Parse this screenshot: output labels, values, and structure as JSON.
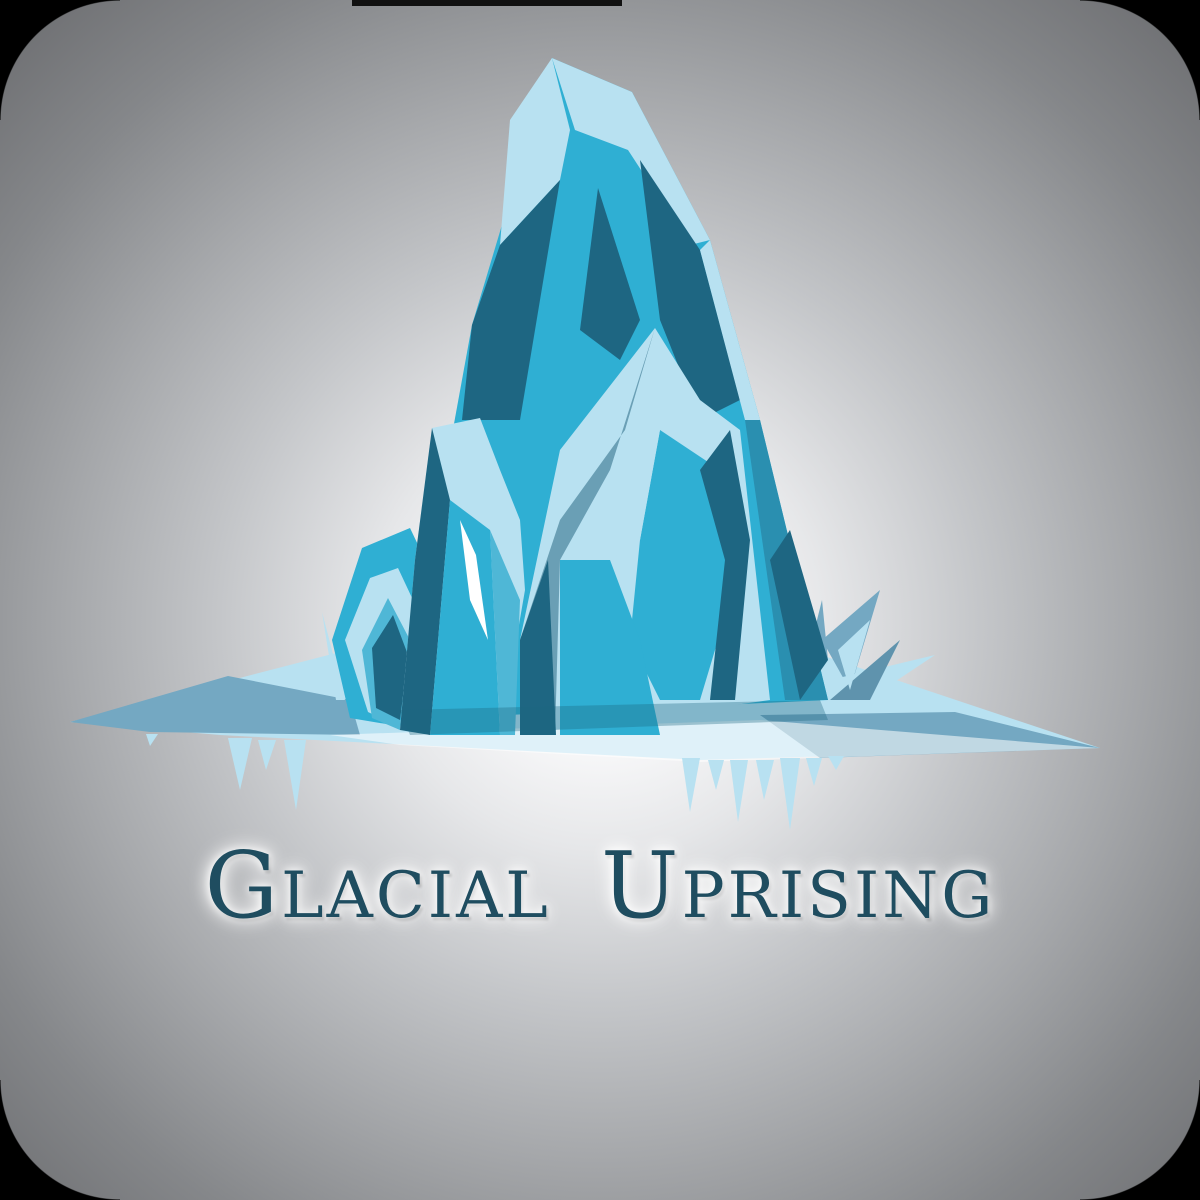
{
  "logo": {
    "title": "Glacial Uprising",
    "emblem_icon": "iceberg-icon",
    "colors": {
      "ice_light": "#b8e1f1",
      "ice_mid": "#2fafd3",
      "ice_dark": "#1e6682",
      "ice_shelf": "#74a8c2",
      "title_text": "#1f4d60",
      "background_center": "#ffffff",
      "background_edge": "#6a6b6e"
    }
  }
}
